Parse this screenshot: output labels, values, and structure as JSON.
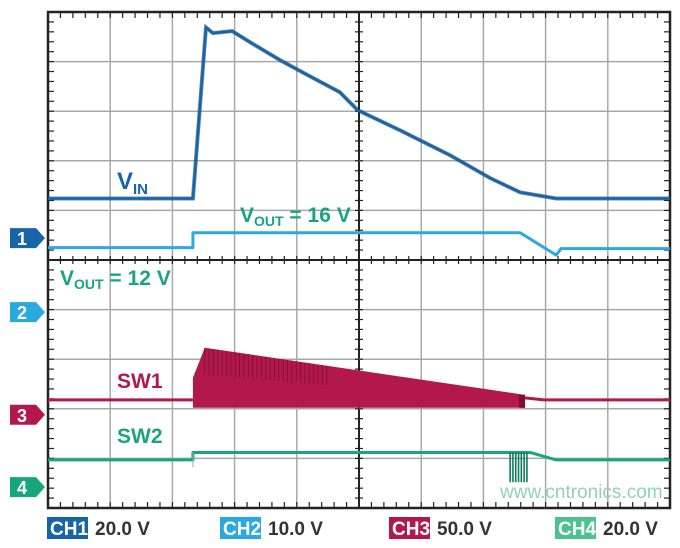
{
  "chart_data": {
    "type": "line",
    "title": "",
    "grid": true,
    "x_divisions": 10,
    "y_divisions": 10,
    "channels": [
      {
        "id": "CH1",
        "marker": "1",
        "scale": "20.0 V",
        "volts_per_div": 20,
        "color": "#1565a8"
      },
      {
        "id": "CH2",
        "marker": "2",
        "scale": "10.0 V",
        "volts_per_div": 10,
        "color": "#29a9e0"
      },
      {
        "id": "CH3",
        "marker": "3",
        "scale": "50.0 V",
        "volts_per_div": 50,
        "color": "#b3184c"
      },
      {
        "id": "CH4",
        "marker": "4",
        "scale": "20.0 V",
        "volts_per_div": 20,
        "color": "#17a57e"
      }
    ],
    "series": [
      {
        "channel": "CH1",
        "name": "VIN",
        "points": [
          [
            0,
            16
          ],
          [
            2.33,
            16
          ],
          [
            2.54,
            85
          ],
          [
            2.65,
            82.7
          ],
          [
            2.96,
            83.5
          ],
          [
            3.25,
            79
          ],
          [
            3.73,
            71.8
          ],
          [
            4.21,
            65.3
          ],
          [
            4.69,
            58.9
          ],
          [
            4.98,
            51.6
          ],
          [
            5.66,
            43.5
          ],
          [
            6.46,
            33.5
          ],
          [
            7.11,
            24.2
          ],
          [
            7.59,
            18.5
          ],
          [
            8.17,
            16
          ],
          [
            10,
            16
          ]
        ]
      },
      {
        "channel": "CH2",
        "name": "VOUT",
        "points": [
          [
            0,
            13
          ],
          [
            2.33,
            13
          ],
          [
            2.33,
            16
          ],
          [
            7.59,
            16
          ],
          [
            8.17,
            11.5
          ],
          [
            8.25,
            12.8
          ],
          [
            10,
            12.8
          ]
        ]
      },
      {
        "channel": "CH3",
        "name": "SW1",
        "baseline": 15,
        "switching_start": 2.33,
        "switching_end": 7.67,
        "envelope_high_start": 67.5,
        "envelope_high_end": 20,
        "envelope_low": 7,
        "after_level": 15
      },
      {
        "channel": "CH4",
        "name": "SW2",
        "points": [
          [
            0,
            11
          ],
          [
            2.33,
            11
          ],
          [
            2.33,
            14
          ],
          [
            7.75,
            14
          ],
          [
            8.17,
            11
          ],
          [
            10,
            11
          ]
        ],
        "burst_start": 7.43,
        "burst_end": 7.72,
        "burst_low": 2
      }
    ],
    "annotations": {
      "vin_main": "V",
      "vin_sub": "IN",
      "vout16_main": "V",
      "vout16_sub": "OUT",
      "vout16_value": " = 16 V",
      "vout12_main": "V",
      "vout12_sub": "OUT",
      "vout12_value": " = 12 V",
      "sw1": "SW1",
      "sw2": "SW2"
    }
  },
  "watermark": "www.cntronics.com"
}
